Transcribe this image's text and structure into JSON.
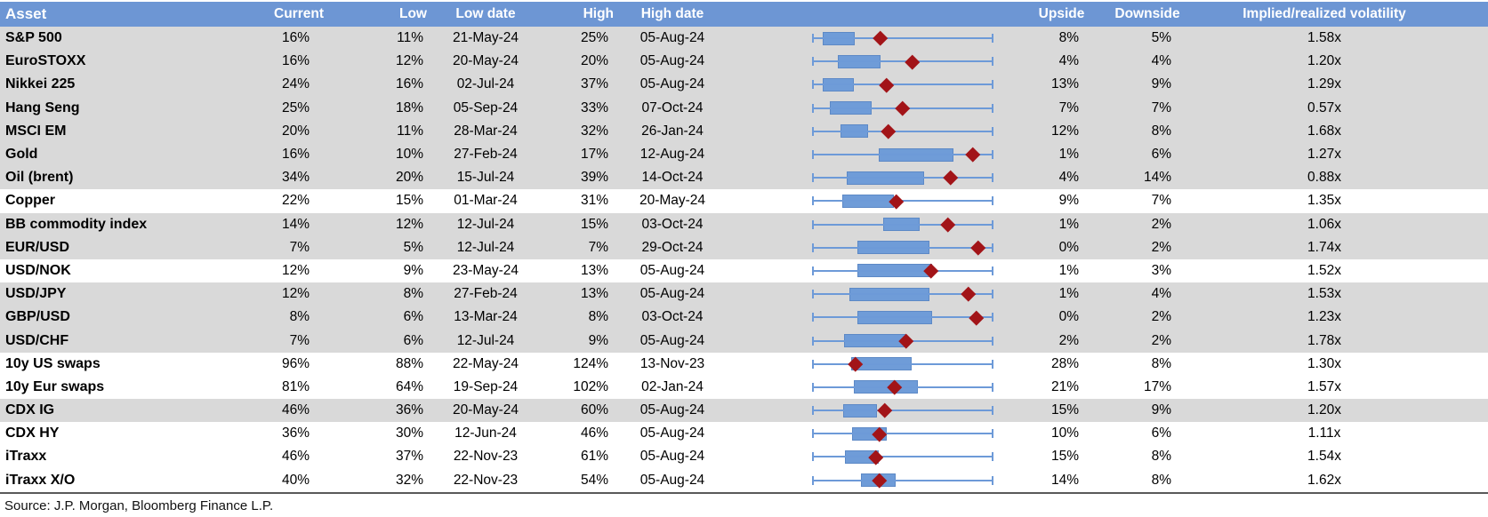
{
  "colors": {
    "header_bg": "#6D96D4",
    "header_text": "#FFFFFF",
    "row_shaded_bg": "#D9D9D9",
    "row_plain_bg": "#FFFFFF",
    "box_fill": "#6F9CD8",
    "box_border": "#5D89C6",
    "whisker": "#6D9AD8",
    "marker": "#A21418",
    "bottom_border": "#595959",
    "body_text": "#000000"
  },
  "source_note": "Source: J.P. Morgan, Bloomberg Finance L.P.",
  "chart_data": {
    "type": "table",
    "note": "Implied volatility ranges table. Each row embeds a horizontal box-and-whisker strip normalized across the row's low-high vol range (whisker = full range with end caps, blue box = interquartile range, dark-red diamond = current level). box and marker values are fractions 0-1 of the plot width.",
    "columns": [
      "Asset",
      "Current",
      "Low",
      "Low date",
      "High",
      "High date",
      "",
      "Upside",
      "Downside",
      "Implied/realized volatility"
    ],
    "rows": [
      {
        "asset": "S&P 500",
        "current": "16%",
        "low": "11%",
        "low_date": "21-May-24",
        "high": "25%",
        "high_date": "05-Aug-24",
        "upside": "8%",
        "downside": "5%",
        "impl_real_vol": "1.58x",
        "shaded": true,
        "box": [
          0.06,
          0.225
        ],
        "marker": 0.375
      },
      {
        "asset": "EuroSTOXX",
        "current": "16%",
        "low": "12%",
        "low_date": "20-May-24",
        "high": "20%",
        "high_date": "05-Aug-24",
        "upside": "4%",
        "downside": "4%",
        "impl_real_vol": "1.20x",
        "shaded": true,
        "box": [
          0.14,
          0.37
        ],
        "marker": 0.555
      },
      {
        "asset": "Nikkei 225",
        "current": "24%",
        "low": "16%",
        "low_date": "02-Jul-24",
        "high": "37%",
        "high_date": "05-Aug-24",
        "upside": "13%",
        "downside": "9%",
        "impl_real_vol": "1.29x",
        "shaded": true,
        "box": [
          0.06,
          0.22
        ],
        "marker": 0.41
      },
      {
        "asset": "Hang Seng",
        "current": "25%",
        "low": "18%",
        "low_date": "05-Sep-24",
        "high": "33%",
        "high_date": "07-Oct-24",
        "upside": "7%",
        "downside": "7%",
        "impl_real_vol": "0.57x",
        "shaded": true,
        "box": [
          0.1,
          0.32
        ],
        "marker": 0.5
      },
      {
        "asset": "MSCI EM",
        "current": "20%",
        "low": "11%",
        "low_date": "28-Mar-24",
        "high": "32%",
        "high_date": "26-Jan-24",
        "upside": "12%",
        "downside": "8%",
        "impl_real_vol": "1.68x",
        "shaded": true,
        "box": [
          0.155,
          0.3
        ],
        "marker": 0.42
      },
      {
        "asset": "Gold",
        "current": "16%",
        "low": "10%",
        "low_date": "27-Feb-24",
        "high": "17%",
        "high_date": "12-Aug-24",
        "upside": "1%",
        "downside": "6%",
        "impl_real_vol": "1.27x",
        "shaded": true,
        "box": [
          0.37,
          0.77
        ],
        "marker": 0.885
      },
      {
        "asset": "Oil (brent)",
        "current": "34%",
        "low": "20%",
        "low_date": "15-Jul-24",
        "high": "39%",
        "high_date": "14-Oct-24",
        "upside": "4%",
        "downside": "14%",
        "impl_real_vol": "0.88x",
        "shaded": true,
        "box": [
          0.19,
          0.61
        ],
        "marker": 0.765
      },
      {
        "asset": "Copper",
        "current": "22%",
        "low": "15%",
        "low_date": "01-Mar-24",
        "high": "31%",
        "high_date": "20-May-24",
        "upside": "9%",
        "downside": "7%",
        "impl_real_vol": "1.35x",
        "shaded": false,
        "box": [
          0.165,
          0.44
        ],
        "marker": 0.465
      },
      {
        "asset": "BB commodity index",
        "current": "14%",
        "low": "12%",
        "low_date": "12-Jul-24",
        "high": "15%",
        "high_date": "03-Oct-24",
        "upside": "1%",
        "downside": "2%",
        "impl_real_vol": "1.06x",
        "shaded": true,
        "box": [
          0.39,
          0.585
        ],
        "marker": 0.75
      },
      {
        "asset": "EUR/USD",
        "current": "7%",
        "low": "5%",
        "low_date": "12-Jul-24",
        "high": "7%",
        "high_date": "29-Oct-24",
        "upside": "0%",
        "downside": "2%",
        "impl_real_vol": "1.74x",
        "shaded": true,
        "box": [
          0.25,
          0.635
        ],
        "marker": 0.915
      },
      {
        "asset": "USD/NOK",
        "current": "12%",
        "low": "9%",
        "low_date": "23-May-24",
        "high": "13%",
        "high_date": "05-Aug-24",
        "upside": "1%",
        "downside": "3%",
        "impl_real_vol": "1.52x",
        "shaded": false,
        "box": [
          0.25,
          0.65
        ],
        "marker": 0.655
      },
      {
        "asset": "USD/JPY",
        "current": "12%",
        "low": "8%",
        "low_date": "27-Feb-24",
        "high": "13%",
        "high_date": "05-Aug-24",
        "upside": "1%",
        "downside": "4%",
        "impl_real_vol": "1.53x",
        "shaded": true,
        "box": [
          0.205,
          0.635
        ],
        "marker": 0.86
      },
      {
        "asset": "GBP/USD",
        "current": "8%",
        "low": "6%",
        "low_date": "13-Mar-24",
        "high": "8%",
        "high_date": "03-Oct-24",
        "upside": "0%",
        "downside": "2%",
        "impl_real_vol": "1.23x",
        "shaded": true,
        "box": [
          0.25,
          0.65
        ],
        "marker": 0.905
      },
      {
        "asset": "USD/CHF",
        "current": "7%",
        "low": "6%",
        "low_date": "12-Jul-24",
        "high": "9%",
        "high_date": "05-Aug-24",
        "upside": "2%",
        "downside": "2%",
        "impl_real_vol": "1.78x",
        "shaded": true,
        "box": [
          0.175,
          0.505
        ],
        "marker": 0.52
      },
      {
        "asset": "10y US swaps",
        "current": "96%",
        "low": "88%",
        "low_date": "22-May-24",
        "high": "124%",
        "high_date": "13-Nov-23",
        "upside": "28%",
        "downside": "8%",
        "impl_real_vol": "1.30x",
        "shaded": false,
        "box": [
          0.215,
          0.54
        ],
        "marker": 0.24
      },
      {
        "asset": "10y Eur swaps",
        "current": "81%",
        "low": "64%",
        "low_date": "19-Sep-24",
        "high": "102%",
        "high_date": "02-Jan-24",
        "upside": "21%",
        "downside": "17%",
        "impl_real_vol": "1.57x",
        "shaded": false,
        "box": [
          0.23,
          0.575
        ],
        "marker": 0.455
      },
      {
        "asset": "CDX IG",
        "current": "46%",
        "low": "36%",
        "low_date": "20-May-24",
        "high": "60%",
        "high_date": "05-Aug-24",
        "upside": "15%",
        "downside": "9%",
        "impl_real_vol": "1.20x",
        "shaded": true,
        "box": [
          0.17,
          0.35
        ],
        "marker": 0.4
      },
      {
        "asset": "CDX HY",
        "current": "36%",
        "low": "30%",
        "low_date": "12-Jun-24",
        "high": "46%",
        "high_date": "05-Aug-24",
        "upside": "10%",
        "downside": "6%",
        "impl_real_vol": "1.11x",
        "shaded": false,
        "box": [
          0.22,
          0.4
        ],
        "marker": 0.37
      },
      {
        "asset": "iTraxx",
        "current": "46%",
        "low": "37%",
        "low_date": "22-Nov-23",
        "high": "61%",
        "high_date": "05-Aug-24",
        "upside": "15%",
        "downside": "8%",
        "impl_real_vol": "1.54x",
        "shaded": false,
        "box": [
          0.18,
          0.36
        ],
        "marker": 0.35
      },
      {
        "asset": "iTraxx X/O",
        "current": "40%",
        "low": "32%",
        "low_date": "22-Nov-23",
        "high": "54%",
        "high_date": "05-Aug-24",
        "upside": "14%",
        "downside": "8%",
        "impl_real_vol": "1.62x",
        "shaded": false,
        "box": [
          0.27,
          0.45
        ],
        "marker": 0.37
      }
    ]
  }
}
